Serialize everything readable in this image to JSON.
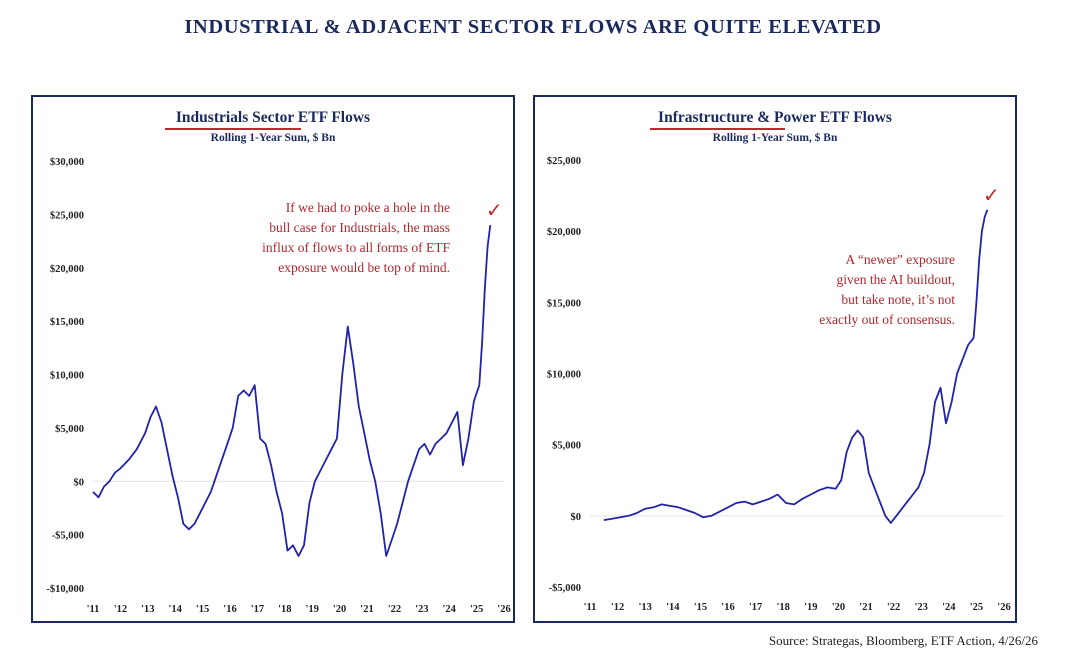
{
  "header": {
    "title": "INDUSTRIAL & ADJACENT SECTOR FLOWS ARE QUITE ELEVATED"
  },
  "footer": {
    "source": "Source: Strategas, Bloomberg, ETF Action, 4/26/26"
  },
  "colors": {
    "line": "#2222aa",
    "title": "#1b2a5c",
    "annotation": "#b3262e",
    "underline": "#c1272d",
    "zero_line": "#e3e3e3",
    "check": "#c1272d"
  },
  "chart_data": [
    {
      "type": "line",
      "title": "Industrials Sector ETF Flows",
      "subtitle": "Rolling 1-Year Sum, $ Bn",
      "xlabel": "",
      "ylabel": "",
      "ylim": [
        -10000,
        30000
      ],
      "xlim": [
        2011,
        2026
      ],
      "yticks": [
        -10000,
        -5000,
        0,
        5000,
        10000,
        15000,
        20000,
        25000,
        30000
      ],
      "ytick_labels": [
        "-$10,000",
        "-$5,000",
        "$0",
        "$5,000",
        "$10,000",
        "$15,000",
        "$20,000",
        "$25,000",
        "$30,000"
      ],
      "xticks": [
        2011,
        2012,
        2013,
        2014,
        2015,
        2016,
        2017,
        2018,
        2019,
        2020,
        2021,
        2022,
        2023,
        2024,
        2025,
        2026
      ],
      "xtick_labels": [
        "'11",
        "'12",
        "'13",
        "'14",
        "'15",
        "'16",
        "'17",
        "'18",
        "'19",
        "'20",
        "'21",
        "'22",
        "'23",
        "'24",
        "'25",
        "'26"
      ],
      "grid": false,
      "annotation": [
        "If we had to poke a hole in the",
        "bull case for Industrials, the mass",
        "influx of flows to all forms of ETF",
        "exposure would be top of mind."
      ],
      "marker": "✓",
      "series": [
        {
          "x": [
            2011.0,
            2011.2,
            2011.4,
            2011.6,
            2011.8,
            2012.0,
            2012.3,
            2012.6,
            2012.9,
            2013.1,
            2013.3,
            2013.5,
            2013.7,
            2013.9,
            2014.1,
            2014.3,
            2014.5,
            2014.7,
            2014.9,
            2015.1,
            2015.3,
            2015.5,
            2015.7,
            2015.9,
            2016.1,
            2016.3,
            2016.5,
            2016.7,
            2016.9,
            2017.1,
            2017.3,
            2017.5,
            2017.7,
            2017.9,
            2018.1,
            2018.3,
            2018.5,
            2018.7,
            2018.9,
            2019.1,
            2019.3,
            2019.5,
            2019.7,
            2019.9,
            2020.1,
            2020.3,
            2020.5,
            2020.7,
            2020.9,
            2021.1,
            2021.3,
            2021.5,
            2021.7,
            2021.9,
            2022.1,
            2022.3,
            2022.5,
            2022.7,
            2022.9,
            2023.1,
            2023.3,
            2023.5,
            2023.7,
            2023.9,
            2024.1,
            2024.3,
            2024.5,
            2024.7,
            2024.9,
            2025.1,
            2025.2,
            2025.3,
            2025.4,
            2025.5
          ],
          "y": [
            -1000,
            -1500,
            -500,
            0,
            800,
            1200,
            2000,
            3000,
            4500,
            6000,
            7000,
            5500,
            3000,
            500,
            -1500,
            -4000,
            -4500,
            -4000,
            -3000,
            -2000,
            -1000,
            500,
            2000,
            3500,
            5000,
            8000,
            8500,
            8000,
            9000,
            4000,
            3500,
            1500,
            -1000,
            -3000,
            -6500,
            -6000,
            -7000,
            -6000,
            -2000,
            0,
            1000,
            2000,
            3000,
            4000,
            10000,
            14500,
            11000,
            7000,
            4500,
            2000,
            0,
            -3000,
            -7000,
            -5500,
            -4000,
            -2000,
            0,
            1500,
            3000,
            3500,
            2500,
            3500,
            4000,
            4500,
            5500,
            6500,
            1500,
            4000,
            7500,
            9000,
            13000,
            18000,
            22000,
            24000
          ]
        }
      ]
    },
    {
      "type": "line",
      "title": "Infrastructure & Power ETF Flows",
      "subtitle": "Rolling 1-Year Sum, $ Bn",
      "xlabel": "",
      "ylabel": "",
      "ylim": [
        -5000,
        25000
      ],
      "xlim": [
        2011,
        2026
      ],
      "yticks": [
        -5000,
        0,
        5000,
        10000,
        15000,
        20000,
        25000
      ],
      "ytick_labels": [
        "-$5,000",
        "$0",
        "$5,000",
        "$10,000",
        "$15,000",
        "$20,000",
        "$25,000"
      ],
      "xticks": [
        2011,
        2012,
        2013,
        2014,
        2015,
        2016,
        2017,
        2018,
        2019,
        2020,
        2021,
        2022,
        2023,
        2024,
        2025,
        2026
      ],
      "xtick_labels": [
        "'11",
        "'12",
        "'13",
        "'14",
        "'15",
        "'16",
        "'17",
        "'18",
        "'19",
        "'20",
        "'21",
        "'22",
        "'23",
        "'24",
        "'25",
        "'26"
      ],
      "grid": false,
      "annotation": [
        "A “newer” exposure",
        "given the AI buildout,",
        "but take note, it’s not",
        "exactly out of consensus."
      ],
      "marker": "✓",
      "series": [
        {
          "x": [
            2011.5,
            2011.8,
            2012.1,
            2012.4,
            2012.7,
            2013.0,
            2013.3,
            2013.6,
            2013.9,
            2014.2,
            2014.5,
            2014.8,
            2015.1,
            2015.4,
            2015.7,
            2016.0,
            2016.3,
            2016.6,
            2016.9,
            2017.2,
            2017.5,
            2017.8,
            2018.1,
            2018.4,
            2018.7,
            2019.0,
            2019.3,
            2019.6,
            2019.9,
            2020.1,
            2020.3,
            2020.5,
            2020.7,
            2020.9,
            2021.1,
            2021.3,
            2021.5,
            2021.7,
            2021.9,
            2022.1,
            2022.3,
            2022.5,
            2022.7,
            2022.9,
            2023.1,
            2023.3,
            2023.5,
            2023.7,
            2023.9,
            2024.1,
            2024.3,
            2024.5,
            2024.7,
            2024.9,
            2025.0,
            2025.1,
            2025.2,
            2025.3,
            2025.4
          ],
          "y": [
            -300,
            -200,
            -100,
            0,
            200,
            500,
            600,
            800,
            700,
            600,
            400,
            200,
            -100,
            0,
            300,
            600,
            900,
            1000,
            800,
            1000,
            1200,
            1500,
            900,
            800,
            1200,
            1500,
            1800,
            2000,
            1900,
            2500,
            4500,
            5500,
            6000,
            5500,
            3000,
            2000,
            1000,
            0,
            -500,
            0,
            500,
            1000,
            1500,
            2000,
            3000,
            5000,
            8000,
            9000,
            6500,
            8000,
            10000,
            11000,
            12000,
            12500,
            15000,
            18000,
            20000,
            21000,
            21500
          ]
        }
      ]
    }
  ]
}
